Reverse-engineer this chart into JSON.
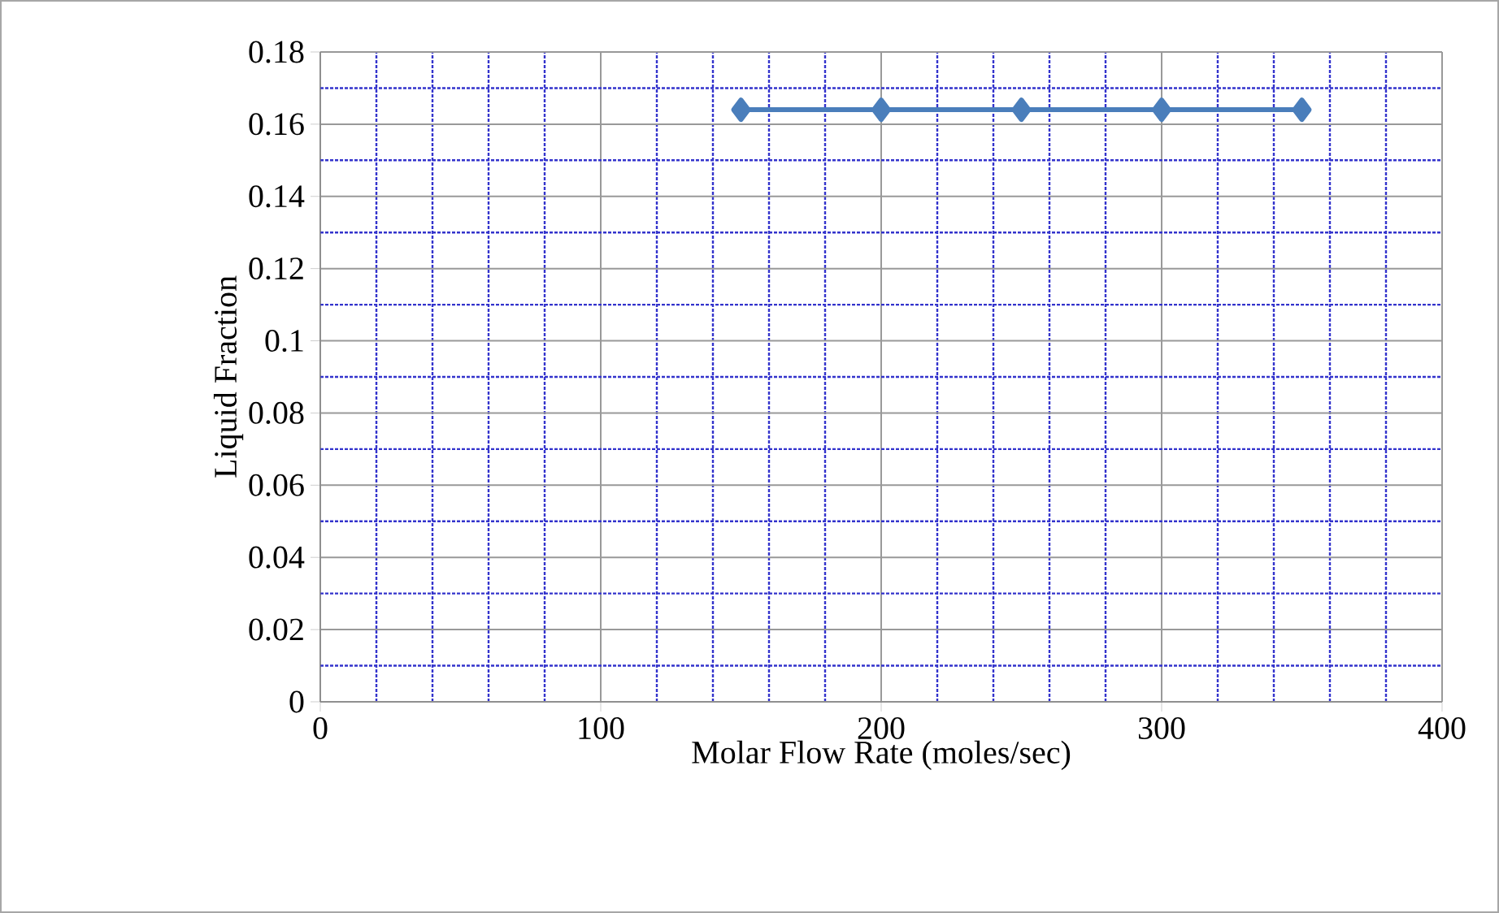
{
  "chart_data": {
    "type": "line",
    "xlabel": "Molar Flow Rate  (moles/sec)",
    "ylabel": "Liquid  Fraction",
    "x": [
      150,
      200,
      250,
      300,
      350
    ],
    "series": [
      {
        "color": "#4a7ebb",
        "values": [
          0.164,
          0.164,
          0.164,
          0.164,
          0.164
        ]
      }
    ],
    "xlim": [
      0,
      400
    ],
    "xticks": [
      0,
      {
        "value": 20,
        "label": null
      },
      {
        "value": 40,
        "label": null
      },
      {
        "value": 60,
        "label": null
      },
      {
        "value": 80,
        "label": null
      },
      100,
      {
        "value": 120,
        "label": null
      },
      {
        "value": 140,
        "label": null
      },
      {
        "value": 160,
        "label": null
      },
      {
        "value": 180,
        "label": null
      },
      200,
      {
        "value": 220,
        "label": null
      },
      {
        "value": 240,
        "label": null
      },
      {
        "value": 260,
        "label": null
      },
      {
        "value": 280,
        "label": null
      },
      300,
      {
        "value": 320,
        "label": null
      },
      {
        "value": 340,
        "label": null
      },
      {
        "value": 360,
        "label": null
      },
      {
        "value": 380,
        "label": null
      },
      400
    ],
    "ylim": [
      0,
      0.18
    ],
    "yticks": [
      {
        "value": 0,
        "label": "0"
      },
      {
        "value": 0.01,
        "label": null
      },
      {
        "value": 0.02,
        "label": "0.02"
      },
      {
        "value": 0.03,
        "label": null
      },
      {
        "value": 0.04,
        "label": "0.04"
      },
      {
        "value": 0.05,
        "label": null
      },
      {
        "value": 0.06,
        "label": "0.06"
      },
      {
        "value": 0.07,
        "label": null
      },
      {
        "value": 0.08,
        "label": "0.08"
      },
      {
        "value": 0.09,
        "label": null
      },
      {
        "value": 0.1,
        "label": "0.1"
      },
      {
        "value": 0.11,
        "label": null
      },
      {
        "value": 0.12,
        "label": "0.12"
      },
      {
        "value": 0.13,
        "label": null
      },
      {
        "value": 0.14,
        "label": "0.14"
      },
      {
        "value": 0.15,
        "label": null
      },
      {
        "value": 0.16,
        "label": "0.16"
      },
      {
        "value": 0.17,
        "label": null
      },
      {
        "value": 0.18,
        "label": "0.18"
      }
    ],
    "grid": true,
    "marker": "diamond",
    "line_style": "solid"
  }
}
